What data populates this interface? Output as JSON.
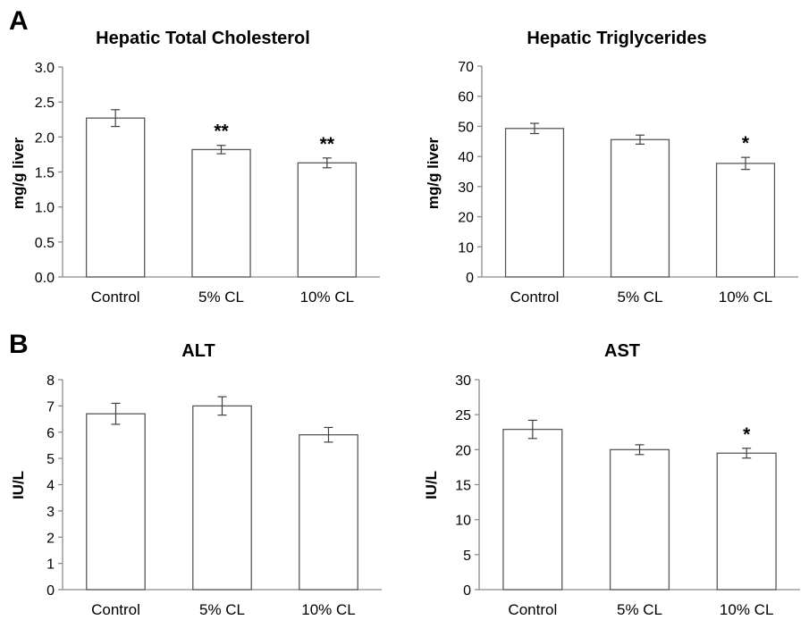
{
  "panels": [
    {
      "letter": "A"
    },
    {
      "letter": "B"
    }
  ],
  "chart_data": [
    {
      "type": "bar",
      "panel": "A",
      "title": "Hepatic  Total Cholesterol",
      "ylabel": "mg/g liver",
      "categories": [
        "Control",
        "5% CL",
        "10% CL"
      ],
      "values": [
        2.27,
        1.82,
        1.63
      ],
      "errors": [
        0.12,
        0.06,
        0.07
      ],
      "annotations": [
        "",
        "**",
        "**"
      ],
      "ylim": [
        0,
        3.0
      ],
      "yticks": [
        "0.0",
        "0.5",
        "1.0",
        "1.5",
        "2.0",
        "2.5",
        "3.0"
      ],
      "grid": false,
      "bar_color": "#ffffff",
      "edge_color": "#595959"
    },
    {
      "type": "bar",
      "panel": "A",
      "title": "Hepatic Triglycerides",
      "ylabel": "mg/g liver",
      "categories": [
        "Control",
        "5% CL",
        "10% CL"
      ],
      "values": [
        49.3,
        45.6,
        37.7
      ],
      "errors": [
        1.7,
        1.5,
        2.0
      ],
      "annotations": [
        "",
        "",
        "*"
      ],
      "ylim": [
        0,
        70
      ],
      "yticks": [
        "0",
        "10",
        "20",
        "30",
        "40",
        "50",
        "60",
        "70"
      ],
      "grid": false,
      "bar_color": "#ffffff",
      "edge_color": "#595959"
    },
    {
      "type": "bar",
      "panel": "B",
      "title": "ALT",
      "ylabel": "IU/L",
      "categories": [
        "Control",
        "5% CL",
        "10% CL"
      ],
      "values": [
        6.7,
        7.0,
        5.9
      ],
      "errors": [
        0.4,
        0.35,
        0.28
      ],
      "annotations": [
        "",
        "",
        ""
      ],
      "ylim": [
        0,
        8
      ],
      "yticks": [
        "0",
        "1",
        "2",
        "3",
        "4",
        "5",
        "6",
        "7",
        "8"
      ],
      "grid": false,
      "bar_color": "#ffffff",
      "edge_color": "#595959"
    },
    {
      "type": "bar",
      "panel": "B",
      "title": "AST",
      "ylabel": "IU/L",
      "categories": [
        "Control",
        "5% CL",
        "10% CL"
      ],
      "values": [
        22.9,
        20.0,
        19.5
      ],
      "errors": [
        1.3,
        0.7,
        0.7
      ],
      "annotations": [
        "",
        "",
        "*"
      ],
      "ylim": [
        0,
        30
      ],
      "yticks": [
        "0",
        "5",
        "10",
        "15",
        "20",
        "25",
        "30"
      ],
      "grid": false,
      "bar_color": "#ffffff",
      "edge_color": "#595959"
    }
  ]
}
